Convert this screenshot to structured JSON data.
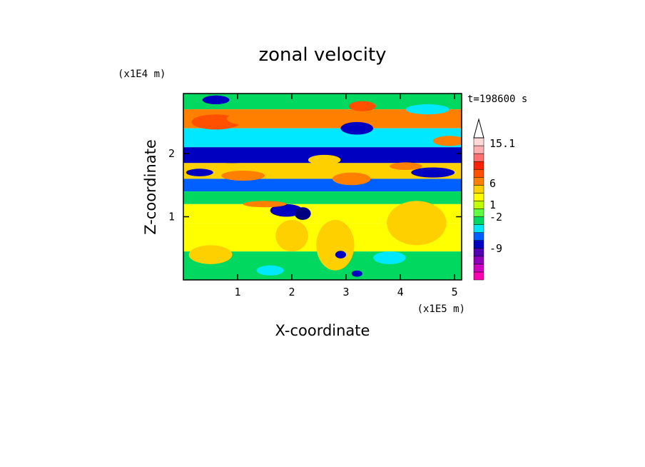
{
  "chart_data": {
    "type": "heatmap",
    "title": "zonal velocity",
    "xlabel": "X-coordinate",
    "ylabel": "Z-coordinate",
    "x_unit": "(x1E5 m)",
    "y_unit": "(x1E4 m)",
    "time_label": "t=198600 s",
    "xlim": [
      0,
      5.13
    ],
    "ylim": [
      0,
      2.95
    ],
    "x_ticks": [
      "1",
      "2",
      "3",
      "4",
      "5"
    ],
    "y_ticks": [
      "1",
      "2"
    ],
    "colorbar": {
      "colors": [
        "#ff00b0",
        "#d000c0",
        "#9000b8",
        "#5000b0",
        "#0000c0",
        "#0060ff",
        "#00e8ff",
        "#00d860",
        "#60ff40",
        "#c0ff00",
        "#ffff00",
        "#ffd000",
        "#ff8000",
        "#ff5000",
        "#ff2000",
        "#ff7070",
        "#ffb0b0",
        "#ffd8d8"
      ],
      "labels": [
        "15.1",
        "6",
        "1",
        "-2",
        "-9"
      ]
    },
    "bands": [
      {
        "z_min": 2.7,
        "z_max": 2.95,
        "color": "#00d860"
      },
      {
        "z_min": 2.4,
        "z_max": 2.7,
        "color": "#ff8000"
      },
      {
        "z_min": 2.1,
        "z_max": 2.4,
        "color": "#00e8ff"
      },
      {
        "z_min": 1.85,
        "z_max": 2.1,
        "color": "#0000c0"
      },
      {
        "z_min": 1.6,
        "z_max": 1.85,
        "color": "#ffd000"
      },
      {
        "z_min": 1.4,
        "z_max": 1.6,
        "color": "#0060ff"
      },
      {
        "z_min": 1.2,
        "z_max": 1.4,
        "color": "#00d860"
      },
      {
        "z_min": 0.9,
        "z_max": 1.2,
        "color": "#ffff00"
      },
      {
        "z_min": 0.45,
        "z_max": 0.9,
        "color": "#ffff00"
      },
      {
        "z_min": 0.0,
        "z_max": 0.45,
        "color": "#00d860"
      }
    ],
    "blobs": [
      {
        "x": 0.6,
        "z": 2.5,
        "rx": 0.45,
        "rz": 0.12,
        "color": "#ff5000"
      },
      {
        "x": 1.2,
        "z": 2.55,
        "rx": 0.4,
        "rz": 0.1,
        "color": "#ff8000"
      },
      {
        "x": 0.9,
        "z": 1.95,
        "rx": 0.55,
        "rz": 0.1,
        "color": "#0000c0"
      },
      {
        "x": 0.3,
        "z": 1.7,
        "rx": 0.25,
        "rz": 0.06,
        "color": "#0000c0"
      },
      {
        "x": 1.1,
        "z": 1.65,
        "rx": 0.4,
        "rz": 0.08,
        "color": "#ff8000"
      },
      {
        "x": 1.9,
        "z": 1.1,
        "rx": 0.3,
        "rz": 0.1,
        "color": "#0000c0"
      },
      {
        "x": 2.2,
        "z": 1.05,
        "rx": 0.15,
        "rz": 0.1,
        "color": "#000080"
      },
      {
        "x": 3.2,
        "z": 2.4,
        "rx": 0.3,
        "rz": 0.1,
        "color": "#0000c0"
      },
      {
        "x": 4.6,
        "z": 1.7,
        "rx": 0.4,
        "rz": 0.08,
        "color": "#0000c0"
      },
      {
        "x": 4.1,
        "z": 1.8,
        "rx": 0.3,
        "rz": 0.06,
        "color": "#ff8000"
      },
      {
        "x": 4.3,
        "z": 0.9,
        "rx": 0.55,
        "rz": 0.35,
        "color": "#ffd000"
      },
      {
        "x": 1.5,
        "z": 1.2,
        "rx": 0.4,
        "rz": 0.05,
        "color": "#ff8000"
      },
      {
        "x": 2.8,
        "z": 0.55,
        "rx": 0.35,
        "rz": 0.4,
        "color": "#ffd000"
      },
      {
        "x": 2.0,
        "z": 0.7,
        "rx": 0.3,
        "rz": 0.25,
        "color": "#ffd000"
      },
      {
        "x": 0.5,
        "z": 0.4,
        "rx": 0.4,
        "rz": 0.15,
        "color": "#ffd000"
      },
      {
        "x": 3.8,
        "z": 0.35,
        "rx": 0.3,
        "rz": 0.1,
        "color": "#00e8ff"
      },
      {
        "x": 1.6,
        "z": 0.15,
        "rx": 0.25,
        "rz": 0.08,
        "color": "#00e8ff"
      },
      {
        "x": 3.1,
        "z": 1.6,
        "rx": 0.35,
        "rz": 0.1,
        "color": "#ff8000"
      },
      {
        "x": 2.6,
        "z": 1.9,
        "rx": 0.3,
        "rz": 0.08,
        "color": "#ffd000"
      },
      {
        "x": 4.9,
        "z": 2.2,
        "rx": 0.3,
        "rz": 0.08,
        "color": "#ff8000"
      },
      {
        "x": 4.5,
        "z": 2.7,
        "rx": 0.4,
        "rz": 0.08,
        "color": "#00e8ff"
      },
      {
        "x": 2.9,
        "z": 0.4,
        "rx": 0.1,
        "rz": 0.06,
        "color": "#0000c0"
      },
      {
        "x": 3.2,
        "z": 0.1,
        "rx": 0.1,
        "rz": 0.05,
        "color": "#0000c0"
      },
      {
        "x": 0.6,
        "z": 2.85,
        "rx": 0.25,
        "rz": 0.07,
        "color": "#0000c0"
      },
      {
        "x": 3.3,
        "z": 2.75,
        "rx": 0.25,
        "rz": 0.08,
        "color": "#ff5000"
      }
    ]
  }
}
